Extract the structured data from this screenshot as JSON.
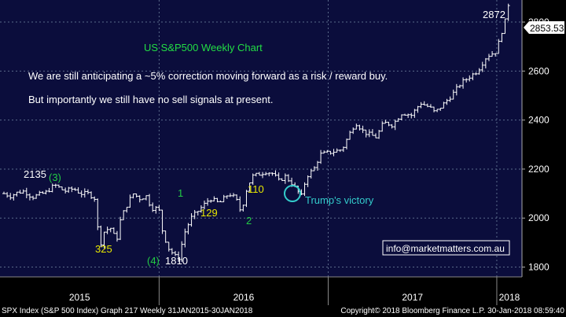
{
  "chart_data": {
    "type": "ohlc",
    "title": "US S&P500 Weekly Chart",
    "notes": [
      "We are still anticipating a ~5% correction moving forward as a risk / reward buy.",
      "But importantly we still have no sell signals at present."
    ],
    "y_axis": {
      "ticks": [
        1800,
        2000,
        2200,
        2400,
        2600,
        2800
      ],
      "range": [
        1760,
        2890
      ],
      "side": "right"
    },
    "x_axis": {
      "labels": [
        "2015",
        "2016",
        "2017",
        "2018"
      ],
      "range": [
        "2015-01-30",
        "2018-01-30"
      ]
    },
    "grid": true,
    "last_price": "2853.53",
    "series": [
      {
        "points": [
          [
            "2015-01-30",
            2100
          ],
          [
            "2015-02-13",
            2090
          ],
          [
            "2015-03-01",
            2105
          ],
          [
            "2015-03-15",
            2110
          ],
          [
            "2015-04-01",
            2085
          ],
          [
            "2015-04-15",
            2095
          ],
          [
            "2015-05-01",
            2105
          ],
          [
            "2015-05-20",
            2135
          ],
          [
            "2015-06-10",
            2110
          ],
          [
            "2015-06-30",
            2120
          ],
          [
            "2015-07-15",
            2100
          ],
          [
            "2015-08-01",
            2100
          ],
          [
            "2015-08-15",
            2080
          ],
          [
            "2015-08-25",
            1880
          ],
          [
            "2015-09-05",
            1950
          ],
          [
            "2015-09-20",
            1960
          ],
          [
            "2015-09-30",
            1900
          ],
          [
            "2015-10-10",
            2000
          ],
          [
            "2015-10-25",
            2060
          ],
          [
            "2015-11-05",
            2100
          ],
          [
            "2015-11-20",
            2080
          ],
          [
            "2015-12-05",
            2090
          ],
          [
            "2015-12-15",
            2040
          ],
          [
            "2015-12-31",
            2040
          ],
          [
            "2016-01-08",
            1950
          ],
          [
            "2016-01-20",
            1880
          ],
          [
            "2016-02-11",
            1830
          ],
          [
            "2016-02-25",
            1940
          ],
          [
            "2016-03-10",
            2000
          ],
          [
            "2016-03-31",
            2040
          ],
          [
            "2016-04-20",
            2080
          ],
          [
            "2016-05-10",
            2060
          ],
          [
            "2016-05-31",
            2100
          ],
          [
            "2016-06-15",
            2080
          ],
          [
            "2016-06-27",
            2020
          ],
          [
            "2016-07-05",
            2100
          ],
          [
            "2016-07-20",
            2170
          ],
          [
            "2016-08-05",
            2180
          ],
          [
            "2016-08-20",
            2190
          ],
          [
            "2016-09-05",
            2180
          ],
          [
            "2016-09-15",
            2150
          ],
          [
            "2016-09-30",
            2170
          ],
          [
            "2016-10-15",
            2140
          ],
          [
            "2016-11-04",
            2090
          ],
          [
            "2016-11-15",
            2170
          ],
          [
            "2016-12-01",
            2200
          ],
          [
            "2016-12-15",
            2260
          ],
          [
            "2017-01-10",
            2270
          ],
          [
            "2017-01-31",
            2280
          ],
          [
            "2017-02-15",
            2340
          ],
          [
            "2017-03-01",
            2390
          ],
          [
            "2017-03-20",
            2350
          ],
          [
            "2017-04-15",
            2330
          ],
          [
            "2017-05-01",
            2390
          ],
          [
            "2017-05-20",
            2380
          ],
          [
            "2017-06-10",
            2430
          ],
          [
            "2017-06-30",
            2420
          ],
          [
            "2017-07-20",
            2470
          ],
          [
            "2017-08-10",
            2450
          ],
          [
            "2017-08-20",
            2430
          ],
          [
            "2017-09-05",
            2460
          ],
          [
            "2017-09-25",
            2500
          ],
          [
            "2017-10-15",
            2550
          ],
          [
            "2017-11-05",
            2580
          ],
          [
            "2017-11-20",
            2600
          ],
          [
            "2017-12-10",
            2660
          ],
          [
            "2017-12-31",
            2680
          ],
          [
            "2018-01-10",
            2750
          ],
          [
            "2018-01-20",
            2810
          ],
          [
            "2018-01-26",
            2872
          ],
          [
            "2018-01-30",
            2853
          ]
        ]
      }
    ],
    "annotations": [
      {
        "text": "2135",
        "x": "2015-05-20",
        "y": 2135,
        "color": "#ffffff"
      },
      {
        "text": "(3)",
        "x": "2015-05-20",
        "y": 2135,
        "color": "#22cc44"
      },
      {
        "text": "325",
        "x": "2015-09-30",
        "y": 1880,
        "color": "#e8e800"
      },
      {
        "text": "(4)",
        "x": "2016-02-11",
        "y": 1810,
        "color": "#22cc44"
      },
      {
        "text": "1810",
        "x": "2016-02-11",
        "y": 1810,
        "color": "#ffffff"
      },
      {
        "text": "1",
        "x": "2016-03-31",
        "y": 2040,
        "color": "#22cc44"
      },
      {
        "text": "129",
        "x": "2016-06-15",
        "y": 2080,
        "color": "#e8e800"
      },
      {
        "text": "110",
        "x": "2016-08-20",
        "y": 2190,
        "color": "#e8e800"
      },
      {
        "text": "2",
        "x": "2016-06-27",
        "y": 2020,
        "color": "#22cc44"
      },
      {
        "text": "Trump's victory",
        "x": "2016-11-04",
        "y": 2090,
        "color": "#33cccc"
      },
      {
        "text": "2872",
        "x": "2018-01-26",
        "y": 2872,
        "color": "#ffffff"
      }
    ],
    "watermark": "info@marketmatters.com.au",
    "footer": {
      "left": "SPX Index (S&P 500 Index) Graph 217  Weekly 31JAN2015-30JAN2018",
      "right": "Copyright© 2018 Bloomberg Finance L.P.    30-Jan-2018 08:59:40"
    },
    "colors": {
      "background": "#0b0d3c",
      "price": "#ffffff",
      "grid": "#5a6a8a",
      "title": "#22dd44",
      "highlight": "#33cccc"
    }
  }
}
